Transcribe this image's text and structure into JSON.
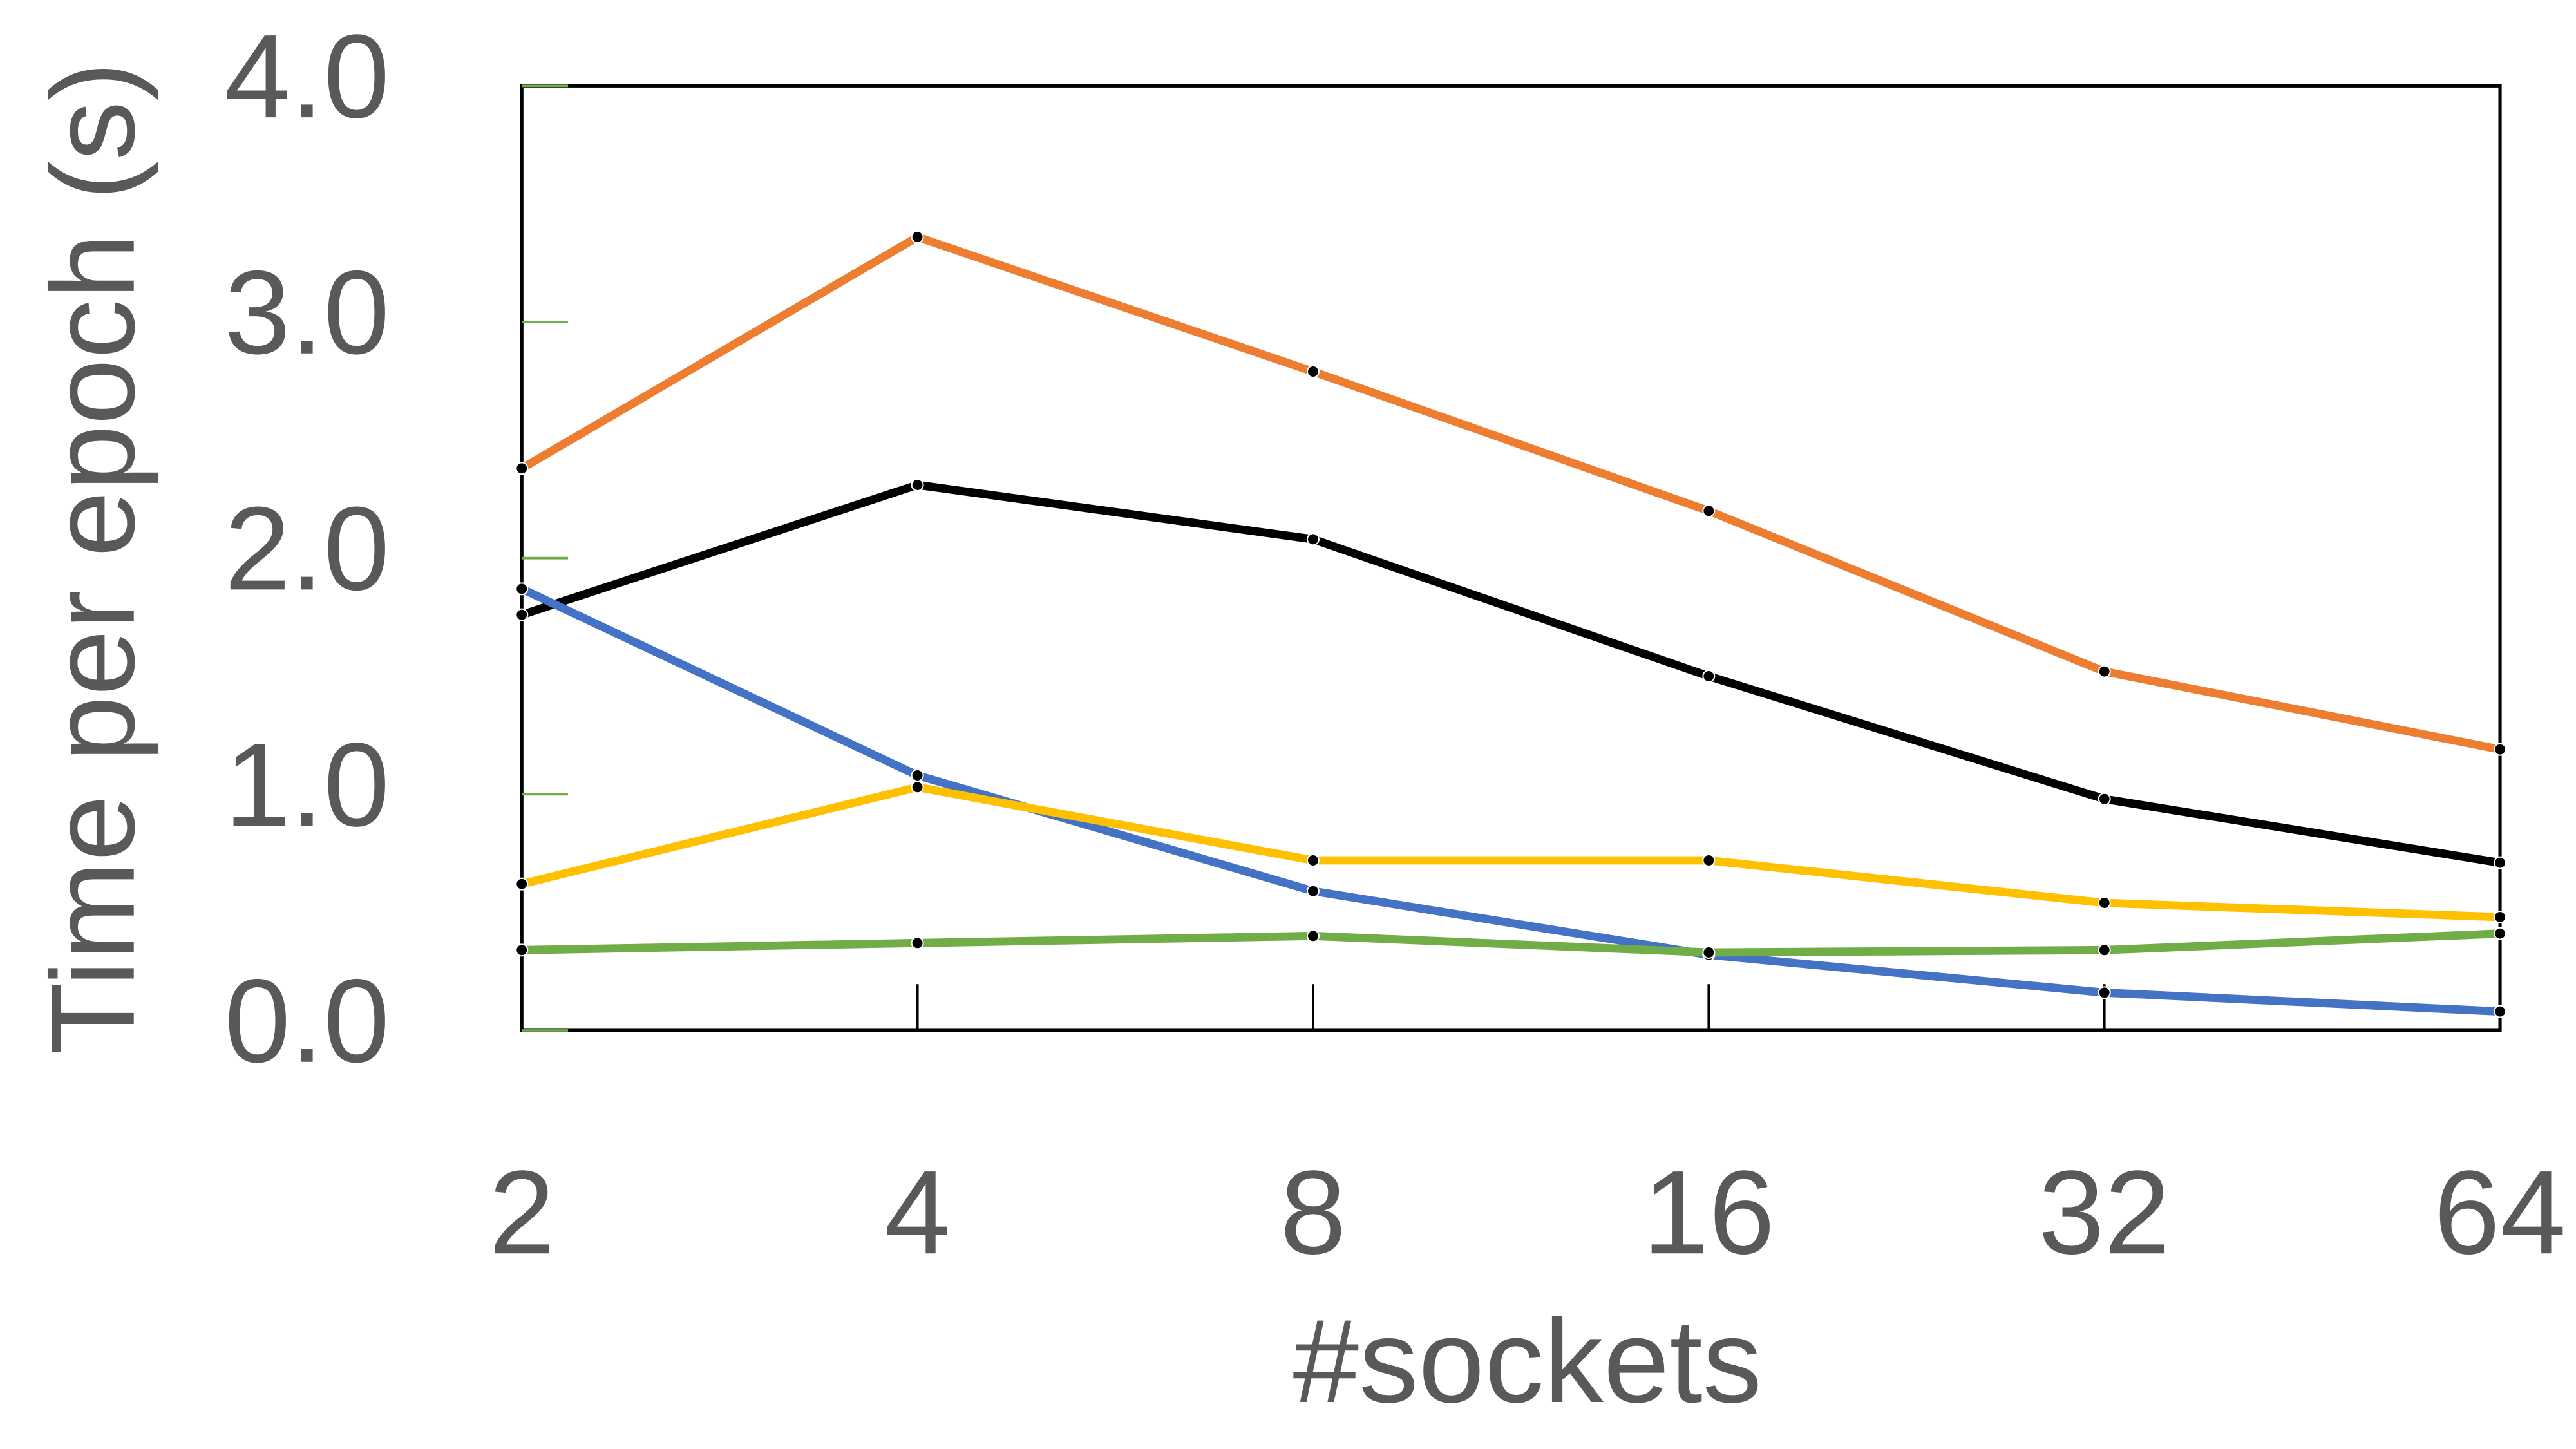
{
  "chart_data": {
    "type": "line",
    "x_label": "#sockets",
    "y_label": "Time per epoch (s)",
    "categories": [
      "2",
      "4",
      "8",
      "16",
      "32",
      "64"
    ],
    "series": [
      {
        "color": "#ed7d31",
        "values": [
          2.38,
          3.36,
          2.79,
          2.2,
          1.52,
          1.19
        ]
      },
      {
        "color": "#000000",
        "values": [
          1.76,
          2.31,
          2.08,
          1.5,
          0.98,
          0.71
        ]
      },
      {
        "color": "#4472c4",
        "values": [
          1.87,
          1.08,
          0.59,
          0.32,
          0.16,
          0.08
        ]
      },
      {
        "color": "#ffc000",
        "values": [
          0.62,
          1.03,
          0.72,
          0.72,
          0.54,
          0.48
        ]
      },
      {
        "color": "#70ad47",
        "values": [
          0.34,
          0.37,
          0.4,
          0.33,
          0.34,
          0.41
        ]
      }
    ],
    "ylim": [
      0,
      4
    ],
    "yticks": [
      {
        "value": 0,
        "label": "0.0"
      },
      {
        "value": 1,
        "label": "1.0"
      },
      {
        "value": 2,
        "label": "2.0"
      },
      {
        "value": 3,
        "label": "3.0"
      },
      {
        "value": 4,
        "label": "4.0"
      }
    ],
    "grid": false
  }
}
